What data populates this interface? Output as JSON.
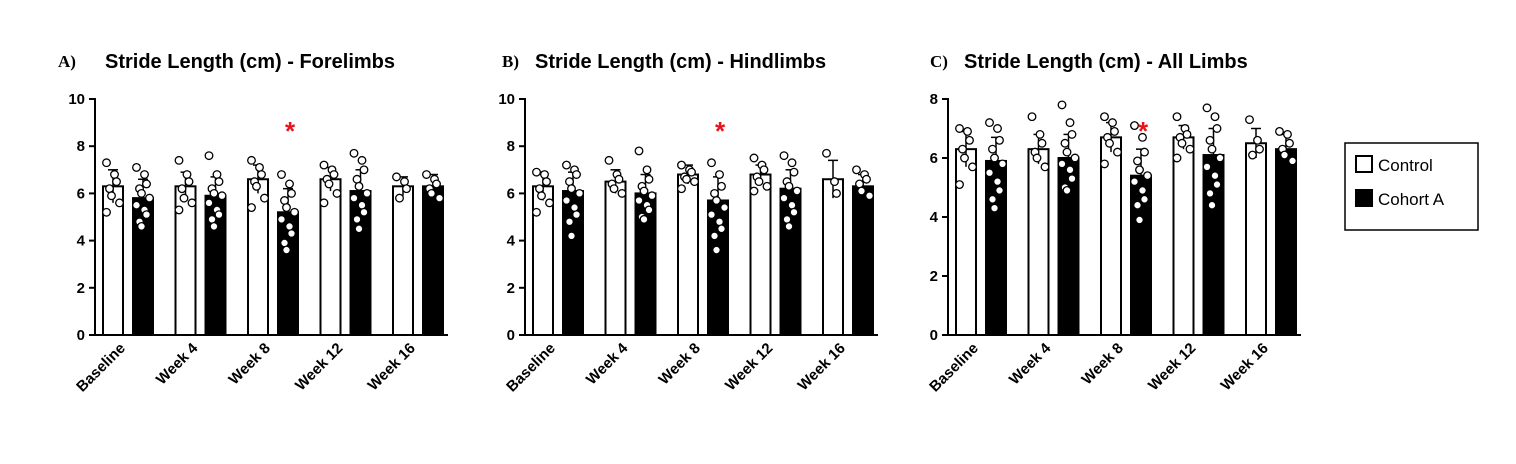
{
  "colors": {
    "control": "#ffffff",
    "cohort": "#000000",
    "significance": "#e8141b",
    "axis": "#000000"
  },
  "legend": [
    {
      "name": "Control",
      "fill": "#ffffff"
    },
    {
      "name": "Cohort A",
      "fill": "#000000"
    }
  ],
  "chart_data": [
    {
      "type": "bar",
      "letter": "A)",
      "title": "Stride Length (cm) - Forelimbs",
      "categories": [
        "Baseline",
        "Week 4",
        "Week 8",
        "Week 12",
        "Week 16"
      ],
      "ylim": [
        0,
        10
      ],
      "yticks": [
        "0",
        "2",
        "4",
        "6",
        "8",
        "10"
      ],
      "significance": {
        "category": "Week 8",
        "label": "*"
      },
      "series": [
        {
          "name": "Control",
          "values": [
            6.3,
            6.3,
            6.6,
            6.6,
            6.3
          ],
          "sd": [
            0.7,
            0.6,
            0.6,
            0.5,
            0.4
          ],
          "points": [
            [
              7.3,
              6.8,
              6.5,
              6.2,
              5.9,
              5.6,
              5.2
            ],
            [
              7.4,
              6.8,
              6.5,
              6.2,
              5.8,
              5.6,
              5.3
            ],
            [
              7.4,
              7.1,
              6.8,
              6.5,
              6.3,
              5.8,
              5.4
            ],
            [
              7.2,
              7.0,
              6.8,
              6.6,
              6.4,
              6.0,
              5.6
            ],
            [
              6.7,
              6.5,
              6.2,
              5.8
            ]
          ]
        },
        {
          "name": "Cohort A",
          "values": [
            5.8,
            5.9,
            5.2,
            6.1,
            6.3
          ],
          "sd": [
            0.8,
            0.8,
            1.0,
            0.9,
            0.5
          ],
          "points": [
            [
              7.1,
              6.8,
              6.4,
              6.2,
              6.0,
              5.8,
              5.5,
              5.3,
              5.1,
              4.8,
              4.6
            ],
            [
              7.6,
              6.8,
              6.5,
              6.2,
              6.0,
              5.9,
              5.6,
              5.3,
              5.1,
              4.9,
              4.6
            ],
            [
              6.8,
              6.4,
              6.0,
              5.7,
              5.4,
              5.2,
              4.9,
              4.6,
              4.3,
              3.9,
              3.6
            ],
            [
              7.7,
              7.4,
              7.0,
              6.6,
              6.3,
              6.0,
              5.8,
              5.5,
              5.2,
              4.9,
              4.5
            ],
            [
              6.8,
              6.6,
              6.4,
              6.2,
              6.0,
              5.8
            ]
          ]
        }
      ]
    },
    {
      "type": "bar",
      "letter": "B)",
      "title": "Stride Length (cm) - Hindlimbs",
      "categories": [
        "Baseline",
        "Week 4",
        "Week 8",
        "Week 12",
        "Week 16"
      ],
      "ylim": [
        0,
        10
      ],
      "yticks": [
        "0",
        "2",
        "4",
        "6",
        "8",
        "10"
      ],
      "significance": {
        "category": "Week 8",
        "label": "*"
      },
      "series": [
        {
          "name": "Control",
          "values": [
            6.3,
            6.5,
            6.8,
            6.8,
            6.6
          ],
          "sd": [
            0.6,
            0.5,
            0.4,
            0.4,
            0.8
          ],
          "points": [
            [
              6.9,
              6.8,
              6.5,
              6.2,
              5.9,
              5.6,
              5.2
            ],
            [
              7.4,
              6.8,
              6.6,
              6.4,
              6.2,
              6.0
            ],
            [
              7.2,
              7.0,
              6.9,
              6.7,
              6.6,
              6.5,
              6.2
            ],
            [
              7.5,
              7.2,
              7.0,
              6.7,
              6.5,
              6.3,
              6.1
            ],
            [
              7.7,
              6.5,
              6.0
            ]
          ]
        },
        {
          "name": "Cohort A",
          "values": [
            6.1,
            6.0,
            5.7,
            6.2,
            6.3
          ],
          "sd": [
            0.8,
            0.8,
            1.0,
            0.8,
            0.5
          ],
          "points": [
            [
              7.2,
              7.0,
              6.8,
              6.5,
              6.2,
              6.0,
              5.7,
              5.4,
              5.1,
              4.8,
              4.2
            ],
            [
              7.8,
              7.0,
              6.6,
              6.3,
              6.1,
              5.9,
              5.7,
              5.5,
              5.3,
              5.0,
              4.9
            ],
            [
              7.3,
              6.8,
              6.3,
              6.0,
              5.7,
              5.4,
              5.1,
              4.8,
              4.5,
              4.2,
              3.6
            ],
            [
              7.6,
              7.3,
              6.9,
              6.5,
              6.3,
              6.1,
              5.8,
              5.5,
              5.2,
              4.9,
              4.6
            ],
            [
              7.0,
              6.8,
              6.6,
              6.4,
              6.1,
              5.9
            ]
          ]
        }
      ]
    },
    {
      "type": "bar",
      "letter": "C)",
      "title": "Stride Length (cm) - All Limbs",
      "categories": [
        "Baseline",
        "Week 4",
        "Week 8",
        "Week 12",
        "Week 16"
      ],
      "ylim": [
        0,
        8
      ],
      "yticks": [
        "0",
        "2",
        "4",
        "6",
        "8"
      ],
      "significance": {
        "category": "Week 8",
        "label": "*"
      },
      "series": [
        {
          "name": "Control",
          "values": [
            6.3,
            6.3,
            6.7,
            6.7,
            6.5
          ],
          "sd": [
            0.6,
            0.5,
            0.5,
            0.4,
            0.5
          ],
          "points": [
            [
              7.0,
              6.9,
              6.6,
              6.3,
              6.0,
              5.7,
              5.1
            ],
            [
              7.4,
              6.8,
              6.5,
              6.2,
              6.0,
              5.7
            ],
            [
              7.4,
              7.2,
              6.9,
              6.7,
              6.5,
              6.2,
              5.8
            ],
            [
              7.4,
              7.0,
              6.8,
              6.7,
              6.5,
              6.3,
              6.0
            ],
            [
              7.3,
              6.6,
              6.3,
              6.1
            ]
          ]
        },
        {
          "name": "Cohort A",
          "values": [
            5.9,
            6.0,
            5.4,
            6.1,
            6.3
          ],
          "sd": [
            0.8,
            0.8,
            0.9,
            0.9,
            0.5
          ],
          "points": [
            [
              7.2,
              7.0,
              6.6,
              6.3,
              6.0,
              5.8,
              5.5,
              5.2,
              4.9,
              4.6,
              4.3
            ],
            [
              7.8,
              7.2,
              6.8,
              6.5,
              6.2,
              6.0,
              5.8,
              5.6,
              5.3,
              5.0,
              4.9
            ],
            [
              7.1,
              6.7,
              6.2,
              5.9,
              5.6,
              5.4,
              5.2,
              4.9,
              4.6,
              4.4,
              3.9
            ],
            [
              7.7,
              7.4,
              7.0,
              6.6,
              6.3,
              6.0,
              5.7,
              5.4,
              5.1,
              4.8,
              4.4
            ],
            [
              6.9,
              6.8,
              6.5,
              6.3,
              6.1,
              5.9
            ]
          ]
        }
      ]
    }
  ]
}
